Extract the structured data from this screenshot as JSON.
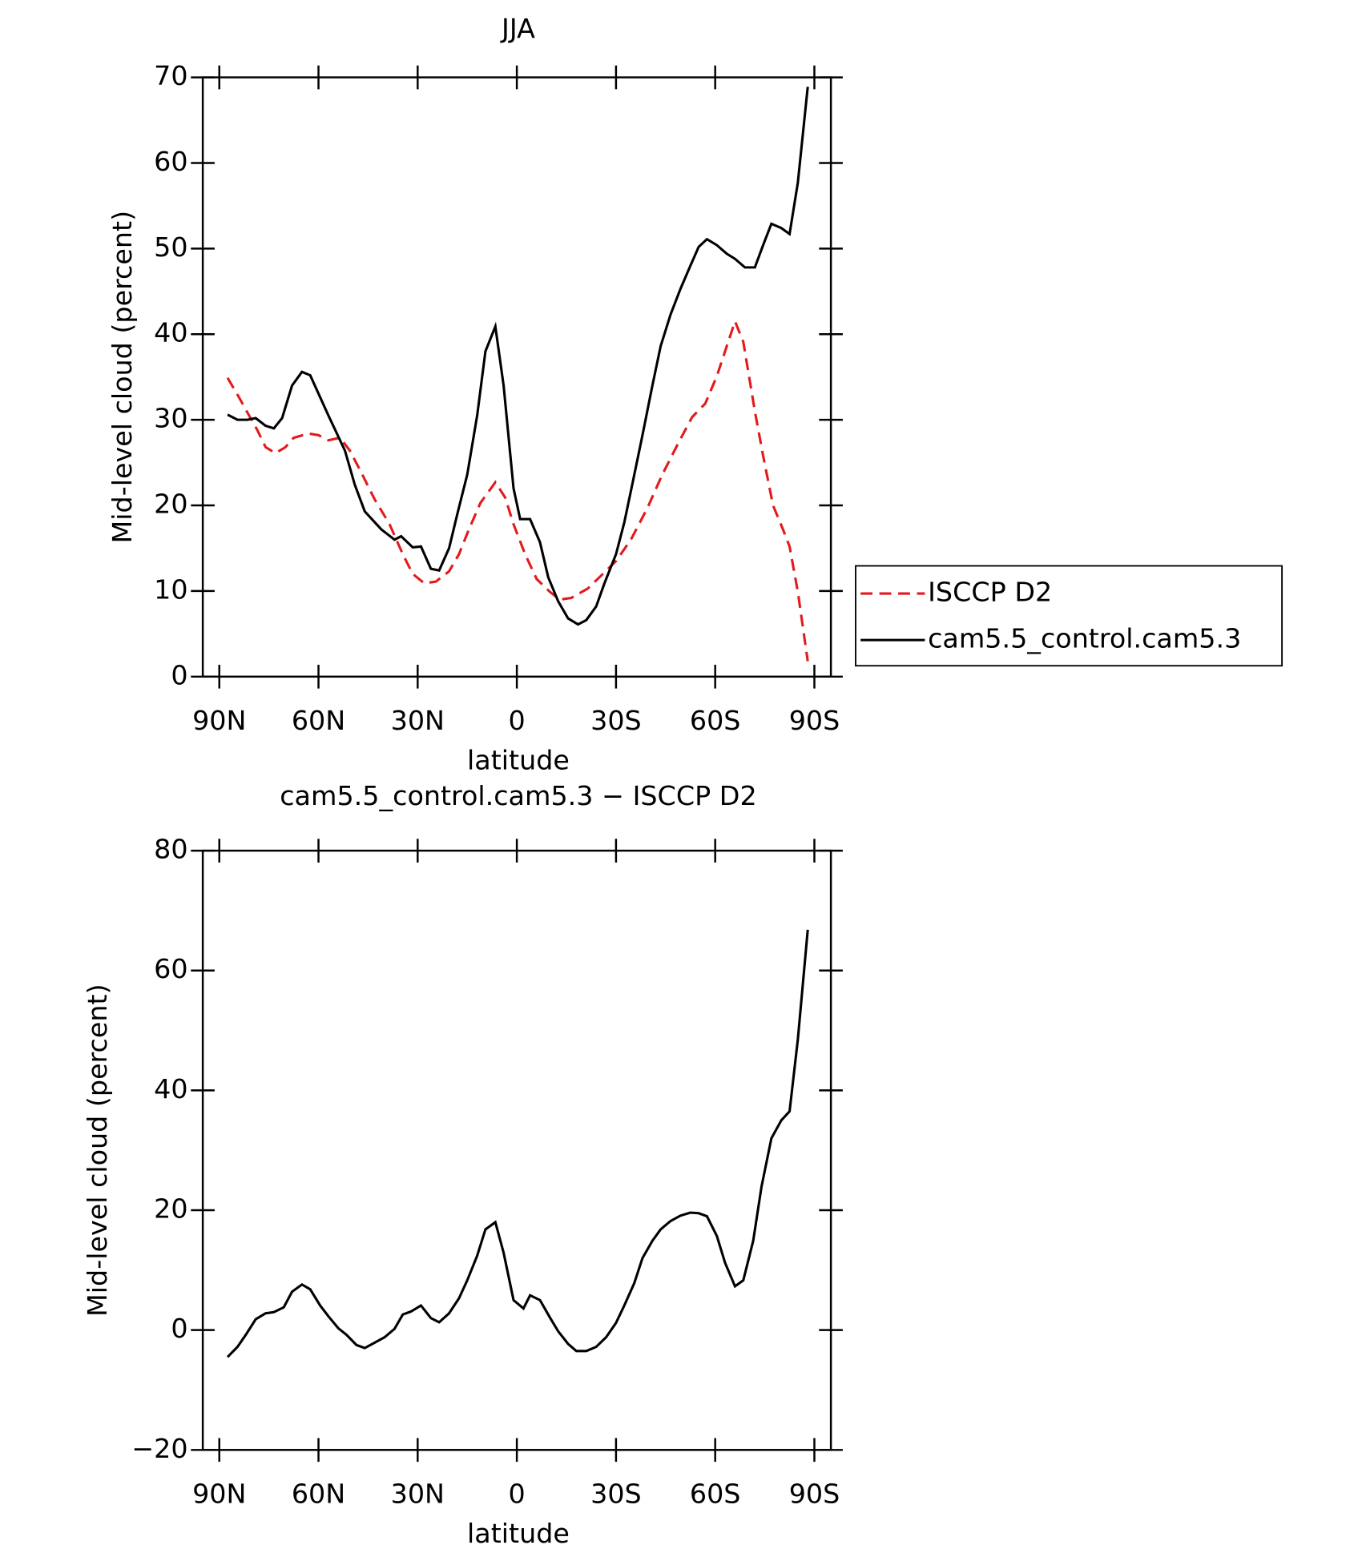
{
  "chart_data": [
    {
      "type": "line",
      "title": "JJA",
      "xlabel": "latitude",
      "ylabel": "Mid-level cloud (percent)",
      "xlim": [
        95,
        -95
      ],
      "xticks": [
        {
          "value": 90,
          "label": "90N"
        },
        {
          "value": 60,
          "label": "60N"
        },
        {
          "value": 30,
          "label": "30N"
        },
        0,
        {
          "value": -30,
          "label": "30S"
        },
        {
          "value": -60,
          "label": "60S"
        },
        {
          "value": -90,
          "label": "90S"
        }
      ],
      "ylim": [
        0,
        70
      ],
      "yticks": [
        0,
        10,
        20,
        30,
        40,
        50,
        60,
        70
      ],
      "legend": "right",
      "series": [
        {
          "name": "ISCCP D2",
          "color": "#e31a1c",
          "dash": true,
          "x": [
            87.5,
            84,
            81,
            78.5,
            76,
            73,
            70,
            67.5,
            63,
            60,
            57,
            53.5,
            50.5,
            47,
            43,
            38.5,
            34.5,
            31.5,
            28,
            24.5,
            20.5,
            17.5,
            14.5,
            11,
            6.5,
            3.5,
            1,
            -2.5,
            -6,
            -10,
            -13,
            -16.5,
            -21.5,
            -25.5,
            -30,
            -34.5,
            -39.5,
            -44,
            -49,
            -53,
            -57,
            -60.5,
            -63.5,
            -66,
            -68.5,
            -72,
            -74.5,
            -77.5,
            -80.5,
            -82.5,
            -85,
            -88
          ],
          "values": [
            34.9,
            32.6,
            30.5,
            28.8,
            26.8,
            26.1,
            26.8,
            27.9,
            28.4,
            28.2,
            27.6,
            27.9,
            26.4,
            23.8,
            20.7,
            17.8,
            14.3,
            12,
            10.9,
            11.1,
            12.3,
            14.3,
            17.2,
            20.3,
            22.7,
            20.9,
            17.8,
            14.3,
            11.4,
            9.9,
            9,
            9.2,
            10.3,
            11.8,
            13.5,
            16,
            19.7,
            23.6,
            27.4,
            30.3,
            31.9,
            35.1,
            38.6,
            41.5,
            39.1,
            31,
            25.8,
            20,
            17.2,
            15.2,
            9.9,
            1.8
          ]
        },
        {
          "name": "cam5.5_control.cam5.3",
          "color": "#000000",
          "dash": false,
          "x": [
            87.5,
            84.5,
            81.5,
            79,
            76,
            73.5,
            71,
            68,
            65,
            62.5,
            57,
            52,
            49,
            46,
            41,
            37,
            35,
            31.5,
            29,
            26,
            23.5,
            20.5,
            18,
            15,
            12,
            9.5,
            6.5,
            4,
            1,
            -1,
            -4,
            -7,
            -9.5,
            -12.5,
            -15.5,
            -18.5,
            -21,
            -24,
            -26.5,
            -30,
            -32.5,
            -35,
            -38,
            -41,
            -43.5,
            -46.5,
            -49.5,
            -52.5,
            -55,
            -57.5,
            -60.5,
            -63.5,
            -66,
            -69,
            -72,
            -74.5,
            -77,
            -80,
            -82.5,
            -85,
            -88
          ],
          "values": [
            30.6,
            30,
            30,
            30.2,
            29.3,
            29,
            30.2,
            34,
            35.6,
            35.2,
            30.5,
            26.4,
            22.4,
            19.3,
            17.2,
            16,
            16.4,
            15.1,
            15.2,
            12.6,
            12.4,
            15,
            19,
            23.6,
            30.5,
            38,
            40.9,
            34,
            22,
            18.4,
            18.4,
            15.7,
            11.6,
            8.8,
            6.8,
            6.1,
            6.6,
            8.2,
            10.9,
            14.3,
            18,
            22.6,
            28.2,
            34,
            38.6,
            42.3,
            45.3,
            48,
            50.2,
            51.1,
            50.4,
            49.4,
            48.8,
            47.8,
            47.8,
            50.4,
            52.9,
            52.4,
            51.7,
            57.7,
            68.9
          ]
        }
      ]
    },
    {
      "type": "line",
      "title": "cam5.5_control.cam5.3 − ISCCP D2",
      "xlabel": "latitude",
      "ylabel": "Mid-level cloud (percent)",
      "xlim": [
        95,
        -95
      ],
      "xticks": [
        {
          "value": 90,
          "label": "90N"
        },
        {
          "value": 60,
          "label": "60N"
        },
        {
          "value": 30,
          "label": "30N"
        },
        0,
        {
          "value": -30,
          "label": "30S"
        },
        {
          "value": -60,
          "label": "60S"
        },
        {
          "value": -90,
          "label": "90S"
        }
      ],
      "ylim": [
        -20,
        80
      ],
      "yticks": [
        {
          "value": -20,
          "label": "−20"
        },
        0,
        20,
        40,
        60,
        80
      ],
      "series": [
        {
          "color": "#000000",
          "dash": false,
          "x": [
            87.5,
            84.5,
            82,
            79,
            76,
            73.5,
            70.5,
            68,
            65,
            62.5,
            59.5,
            57,
            54,
            51.5,
            48.5,
            46,
            43,
            40,
            37,
            34.5,
            32,
            29,
            26,
            23.5,
            20.5,
            17.5,
            15,
            12,
            9.5,
            6.5,
            4,
            1,
            -2,
            -4,
            -7,
            -10,
            -12.5,
            -15.5,
            -18,
            -21,
            -24,
            -27,
            -30,
            -32.5,
            -35.5,
            -38,
            -41,
            -43.5,
            -46.5,
            -49.5,
            -52.5,
            -55,
            -57.5,
            -60.5,
            -63,
            -66,
            -68.5,
            -71.5,
            -74,
            -77,
            -80,
            -82.5,
            -85,
            -88
          ],
          "values": [
            -4.5,
            -2.8,
            -0.8,
            1.8,
            2.8,
            3,
            3.8,
            6.4,
            7.6,
            6.8,
            4.1,
            2.3,
            0.3,
            -0.8,
            -2.5,
            -3,
            -2.1,
            -1.2,
            0.2,
            2.6,
            3.1,
            4.1,
            2,
            1.3,
            2.8,
            5.3,
            8.3,
            12.4,
            16.8,
            18,
            12.9,
            5,
            3.6,
            5.8,
            5,
            2.1,
            -0.2,
            -2.3,
            -3.5,
            -3.5,
            -2.8,
            -1.2,
            1.2,
            4.1,
            7.8,
            12,
            14.9,
            16.8,
            18.2,
            19.1,
            19.6,
            19.5,
            19,
            15.7,
            11.2,
            7.3,
            8.3,
            14.9,
            23.9,
            32,
            35,
            36.5,
            48.5,
            66.8
          ]
        }
      ]
    }
  ]
}
